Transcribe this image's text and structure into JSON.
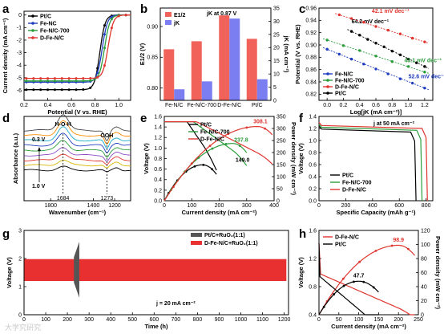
{
  "watermark": "大学究研究",
  "chart_data": [
    {
      "panel": "a",
      "type": "line",
      "xlabel": "Potential (V vs. RHE)",
      "ylabel": "Current density (mA cm⁻²)",
      "xlim": [
        0.2,
        1.1
      ],
      "ylim": [
        -6.8,
        0.3
      ],
      "xticks": [
        "0.2",
        "0.4",
        "0.6",
        "0.8",
        "1.0"
      ],
      "yticks": [
        "0",
        "-1",
        "-2",
        "-3",
        "-4",
        "-5",
        "-6"
      ],
      "legend": [
        "Pt/C",
        "Fe-NC",
        "Fe-N/C-700",
        "D-Fe-N/C"
      ],
      "legend_position": "top-left",
      "series": [
        {
          "name": "Pt/C",
          "color": "#000000",
          "limiting": -5.95,
          "half_wave": 0.84
        },
        {
          "name": "Fe-NC",
          "color": "#1f3dbf",
          "limiting": -5.35,
          "half_wave": 0.86
        },
        {
          "name": "Fe-N/C-700",
          "color": "#2a9d3a",
          "limiting": -5.25,
          "half_wave": 0.88
        },
        {
          "name": "D-Fe-N/C",
          "color": "#e0352f",
          "limiting": -5.05,
          "half_wave": 0.91
        }
      ]
    },
    {
      "panel": "b",
      "type": "bar",
      "categories": [
        "Fe-N/C",
        "Fe-N/C-700",
        "D-Fe-N/C",
        "Pt/C"
      ],
      "ylabel_left": "E1/2 (V)",
      "ylabel_right": "jK (mA cm⁻²)",
      "ylim_left": [
        0.78,
        0.93
      ],
      "ylim_right": [
        0,
        35
      ],
      "yticks_left": [
        "0.80",
        "0.85",
        "0.90"
      ],
      "yticks_right": [
        "0",
        "5",
        "10",
        "15",
        "20",
        "25",
        "30",
        "35"
      ],
      "legend": [
        "E1/2",
        "jK"
      ],
      "annotation": "jK at 0.87 V",
      "series": [
        {
          "name": "E1/2",
          "color": "#f0625a",
          "values": [
            0.863,
            0.876,
            0.918,
            0.88
          ]
        },
        {
          "name": "jK",
          "color": "#7a7ef0",
          "values": [
            4.2,
            7.2,
            31,
            8.0
          ]
        }
      ]
    },
    {
      "panel": "c",
      "type": "scatter",
      "xlabel": "Log[jK (mA cm⁻²)]",
      "ylabel": "Potential (V vs. RHE)",
      "xlim": [
        -0.1,
        1.3
      ],
      "ylim": [
        0.81,
        0.96
      ],
      "xticks": [
        "0.0",
        "0.2",
        "0.4",
        "0.6",
        "0.8",
        "1.0",
        "1.2"
      ],
      "yticks": [
        "0.82",
        "0.84",
        "0.86",
        "0.88",
        "0.90",
        "0.92",
        "0.94",
        "0.96"
      ],
      "legend": [
        "Fe-N/C",
        "Fe-N/C-700",
        "D-Fe-N/C",
        "Pt/C"
      ],
      "legend_position": "bottom-left",
      "series": [
        {
          "name": "Pt/C",
          "color": "#000000",
          "tafel": "64.2 mV dec⁻¹",
          "x": [
            0.3,
            0.4,
            0.5,
            0.6,
            0.7,
            0.8,
            0.9,
            1.0,
            1.1,
            1.2
          ],
          "y": [
            0.922,
            0.916,
            0.909,
            0.903,
            0.897,
            0.89,
            0.884,
            0.877,
            0.871,
            0.865
          ]
        },
        {
          "name": "D-Fe-N/C",
          "color": "#e0352f",
          "tafel": "42.1 mV dec⁻¹",
          "x": [
            0.15,
            0.3,
            0.45,
            0.6,
            0.75,
            0.9,
            1.05,
            1.2
          ],
          "y": [
            0.949,
            0.943,
            0.937,
            0.93,
            0.924,
            0.918,
            0.911,
            0.905
          ]
        },
        {
          "name": "Fe-N/C-700",
          "color": "#2a9d3a",
          "tafel": "43.1 mV dec⁻¹",
          "x": [
            0.0,
            0.2,
            0.4,
            0.6,
            0.8,
            1.0,
            1.2
          ],
          "y": [
            0.908,
            0.899,
            0.891,
            0.882,
            0.873,
            0.865,
            0.856
          ]
        },
        {
          "name": "Fe-N/C",
          "color": "#1f3dbf",
          "tafel": "52.6 mV dec⁻¹",
          "x": [
            0.0,
            0.15,
            0.3,
            0.45,
            0.6,
            0.75,
            0.9,
            1.05,
            1.2
          ],
          "y": [
            0.893,
            0.885,
            0.877,
            0.869,
            0.861,
            0.853,
            0.845,
            0.838,
            0.83
          ]
        }
      ]
    },
    {
      "panel": "d",
      "type": "line",
      "xlabel": "Wavenumber (cm⁻¹)",
      "ylabel": "Absorbance (a.u.)",
      "xlim": [
        2050,
        1050
      ],
      "xticks": [
        "1800",
        "1400",
        "1200"
      ],
      "annotations": [
        "H-O-H",
        "OOH",
        "0.3 V",
        "1.0 V",
        "1684",
        "1273"
      ],
      "series_colors": [
        "#000000",
        "#d8b800",
        "#e0352f",
        "#8a4cc4",
        "#2a9d3a",
        "#1f3dbf",
        "#18a8c8",
        "#ff8c00",
        "#444444"
      ]
    },
    {
      "panel": "e",
      "type": "line",
      "xlabel": "Current density (mA cm⁻²)",
      "ylabel_left": "Voltage (V)",
      "ylabel_right": "Power density (mW cm⁻²)",
      "xlim": [
        0,
        400
      ],
      "ylim_left": [
        0,
        1.6
      ],
      "ylim_right": [
        0,
        350
      ],
      "xticks": [
        "0",
        "100",
        "200",
        "300",
        "400"
      ],
      "yticks_left": [
        "0.0",
        "0.2",
        "0.4",
        "0.6",
        "0.8",
        "1.0",
        "1.2",
        "1.4",
        "1.6"
      ],
      "yticks_right": [
        "0",
        "50",
        "100",
        "150",
        "200",
        "250",
        "300",
        "350"
      ],
      "legend": [
        "Pt/C",
        "Fe-N/C-700",
        "D-Fe-N/C"
      ],
      "peak_labels": [
        "149.0",
        "237.8",
        "308.1"
      ],
      "series": [
        {
          "name": "Pt/C",
          "color": "#000000",
          "jmax": 190,
          "peak_power": 149.0,
          "peak_j": 140
        },
        {
          "name": "Fe-N/C-700",
          "color": "#2a9d3a",
          "jmax": 300,
          "peak_power": 237.8,
          "peak_j": 250
        },
        {
          "name": "D-Fe-N/C",
          "color": "#e0352f",
          "jmax": 400,
          "peak_power": 308.1,
          "peak_j": 340
        }
      ]
    },
    {
      "panel": "f",
      "type": "line",
      "xlabel": "Specific Capacity (mAh g⁻¹)",
      "ylabel": "Voltage (V)",
      "xlim": [
        0,
        850
      ],
      "ylim": [
        0,
        1.4
      ],
      "xticks": [
        "0",
        "200",
        "400",
        "600",
        "800"
      ],
      "yticks": [
        "0.0",
        "0.2",
        "0.4",
        "0.6",
        "0.8",
        "1.0",
        "1.2",
        "1.4"
      ],
      "annotation": "j at 50 mA cm⁻²",
      "legend": [
        "Pt/C",
        "Fe-N/C-700",
        "D-Fe-N/C"
      ],
      "series": [
        {
          "name": "Pt/C",
          "color": "#000000",
          "plateau": 1.19,
          "capacity": 725
        },
        {
          "name": "Fe-N/C-700",
          "color": "#2a9d3a",
          "plateau": 1.22,
          "capacity": 770
        },
        {
          "name": "D-Fe-N/C",
          "color": "#e0352f",
          "plateau": 1.25,
          "capacity": 810
        }
      ]
    },
    {
      "panel": "g",
      "type": "line",
      "xlabel": "Time (h)",
      "ylabel": "Voltage (V)",
      "xlim": [
        0,
        1220
      ],
      "ylim": [
        0,
        3
      ],
      "xticks": [
        "0",
        "100",
        "200",
        "300",
        "400",
        "500",
        "600",
        "700",
        "800",
        "900",
        "1000",
        "1100",
        "1200"
      ],
      "yticks": [
        "0",
        "1",
        "2",
        "3"
      ],
      "annotation": "j = 20 mA cm⁻²",
      "legend": [
        "Pt/C+RuO₂(1:1)",
        "D-Fe-N/C+RuO₂(1:1)"
      ],
      "series": [
        {
          "name": "Pt/C+RuO₂(1:1)",
          "color": "#555555",
          "t_end": 255,
          "v_low": 1.15,
          "v_high": 2.05
        },
        {
          "name": "D-Fe-N/C+RuO₂(1:1)",
          "color": "#e83030",
          "t_end": 1210,
          "v_low": 1.2,
          "v_high": 1.98
        }
      ]
    },
    {
      "panel": "h",
      "type": "line",
      "xlabel": "Current density (mA cm⁻²)",
      "ylabel_left": "Voltage (V)",
      "ylabel_right": "Power density (mW cm⁻²)",
      "xlim": [
        0,
        250
      ],
      "ylim_left": [
        0.4,
        1.6
      ],
      "ylim_right": [
        0,
        120
      ],
      "xticks": [
        "0",
        "50",
        "100",
        "150",
        "200",
        "250"
      ],
      "yticks_left": [
        "0.4",
        "0.8",
        "1.2",
        "1.6"
      ],
      "yticks_right": [
        "0",
        "20",
        "40",
        "60",
        "80",
        "100",
        "120"
      ],
      "legend": [
        "D-Fe-N/C",
        "Pt/C"
      ],
      "peak_labels": [
        "98.9",
        "47.7"
      ],
      "series": [
        {
          "name": "D-Fe-N/C",
          "color": "#e0352f",
          "jmax": 245,
          "peak_power": 98.9,
          "peak_j": 200
        },
        {
          "name": "Pt/C",
          "color": "#000000",
          "jmax": 150,
          "peak_power": 47.7,
          "peak_j": 100
        }
      ]
    }
  ]
}
